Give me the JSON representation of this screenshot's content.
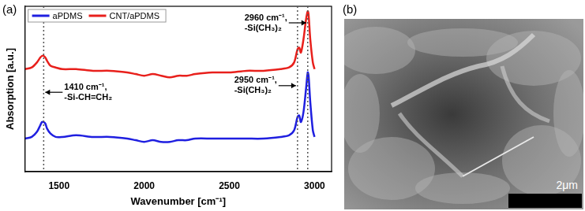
{
  "chart_data": {
    "type": "line",
    "panel_label": "(a)",
    "x_label": "Wavenumber [cm⁻¹]",
    "y_label": "Absorption [a.u.]",
    "x": [
      1300,
      1340,
      1370,
      1390,
      1400,
      1410,
      1420,
      1430,
      1450,
      1480,
      1520,
      1600,
      1700,
      1800,
      1900,
      1950,
      2000,
      2050,
      2100,
      2150,
      2200,
      2250,
      2300,
      2400,
      2500,
      2600,
      2700,
      2800,
      2850,
      2880,
      2900,
      2910,
      2920,
      2935,
      2950,
      2960,
      2965,
      2975,
      2990,
      3000
    ],
    "series": [
      {
        "name": "aPDMS",
        "color": "#1f1fe0",
        "values": [
          0.2,
          0.21,
          0.24,
          0.28,
          0.3,
          0.3,
          0.29,
          0.26,
          0.23,
          0.21,
          0.21,
          0.22,
          0.21,
          0.21,
          0.2,
          0.19,
          0.18,
          0.19,
          0.18,
          0.18,
          0.19,
          0.19,
          0.2,
          0.2,
          0.2,
          0.2,
          0.2,
          0.21,
          0.22,
          0.25,
          0.33,
          0.34,
          0.3,
          0.36,
          0.5,
          0.6,
          0.58,
          0.42,
          0.25,
          0.21
        ]
      },
      {
        "name": "CNT/aPDMS",
        "color": "#e8201c",
        "values": [
          0.62,
          0.63,
          0.66,
          0.69,
          0.7,
          0.7,
          0.69,
          0.67,
          0.64,
          0.63,
          0.62,
          0.62,
          0.61,
          0.61,
          0.6,
          0.59,
          0.58,
          0.59,
          0.58,
          0.57,
          0.58,
          0.58,
          0.59,
          0.6,
          0.6,
          0.61,
          0.61,
          0.62,
          0.63,
          0.66,
          0.74,
          0.75,
          0.72,
          0.8,
          0.92,
          0.97,
          0.95,
          0.8,
          0.66,
          0.62
        ]
      }
    ],
    "xlim": [
      1300,
      3100
    ],
    "xticks": [
      1500,
      2000,
      2500,
      3000
    ],
    "ylim": [
      0,
      1
    ],
    "yticks": [],
    "tick_labels": "x",
    "grid": false,
    "legend": "upper left",
    "annotations": [
      {
        "text": [
          "1410 cm⁻¹,",
          "-Si-CH=CH₂"
        ],
        "x": 1410
      },
      {
        "text": [
          "2960 cm⁻¹,",
          "-Si(CH₃)₂"
        ],
        "x": 2960
      },
      {
        "text": [
          "2950 cm⁻¹,",
          "-Si(CH₃)₂"
        ],
        "x": 2900
      }
    ]
  },
  "image_panel": {
    "label": "(b)",
    "scale_bar": "2μm"
  }
}
